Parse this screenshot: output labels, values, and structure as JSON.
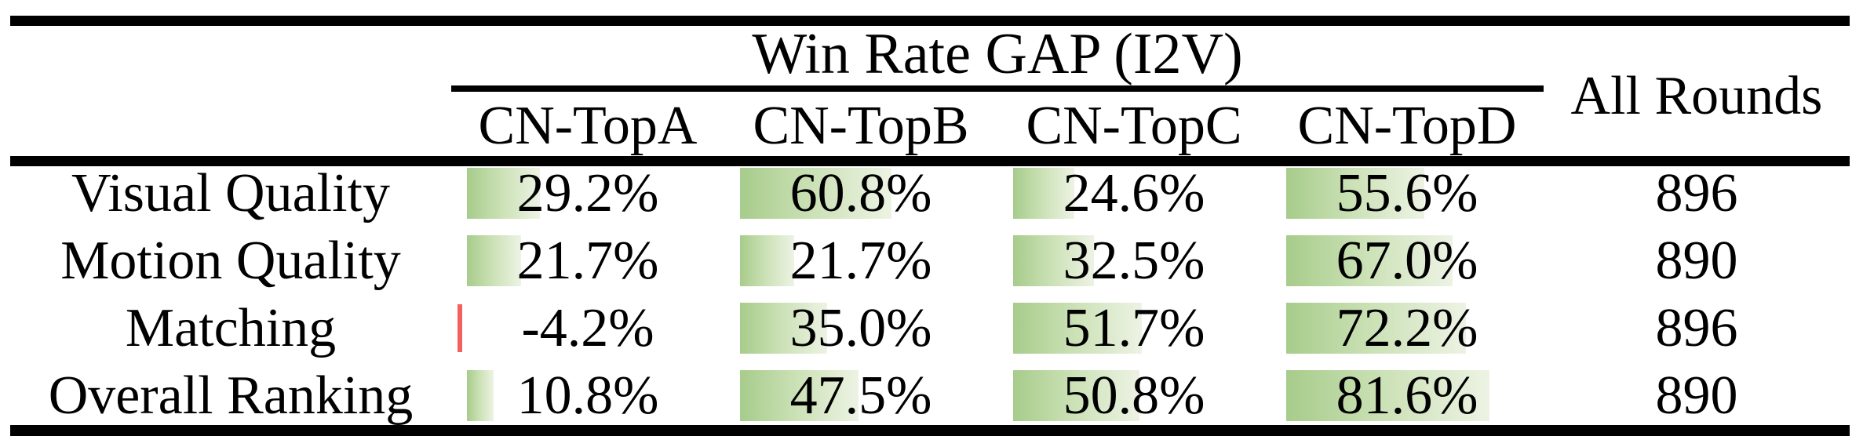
{
  "table": {
    "group_header": "Win Rate GAP (I2V)",
    "all_rounds_header": "All Rounds"
  },
  "chart_data": {
    "type": "table",
    "title": "Win Rate GAP (I2V)",
    "columns": [
      "CN-TopA",
      "CN-TopB",
      "CN-TopC",
      "CN-TopD"
    ],
    "extra_column": "All Rounds",
    "rows": [
      {
        "label": "Visual Quality",
        "values": [
          29.2,
          60.8,
          24.6,
          55.6
        ],
        "all_rounds": "896"
      },
      {
        "label": "Motion Quality",
        "values": [
          21.7,
          21.7,
          32.5,
          67.0
        ],
        "all_rounds": "890"
      },
      {
        "label": "Matching",
        "values": [
          -4.2,
          35.0,
          51.7,
          72.2
        ],
        "all_rounds": "896"
      },
      {
        "label": "Overall Ranking",
        "values": [
          10.8,
          47.5,
          50.8,
          81.6
        ],
        "all_rounds": "890"
      }
    ],
    "value_format": "percent_one_decimal",
    "bar": {
      "pixels_per_percent": 3.17,
      "positive_gradient": [
        "#a7cc8b",
        "#cde2b8",
        "#edf3e4"
      ],
      "negative_color": "#f2605f"
    },
    "colors": {
      "text": "#000000",
      "rule": "#000000",
      "background": "#ffffff"
    },
    "layout_hints": {
      "bars_left_aligned": true,
      "values_centered": true,
      "grid": "booktabs-rules-only"
    }
  }
}
